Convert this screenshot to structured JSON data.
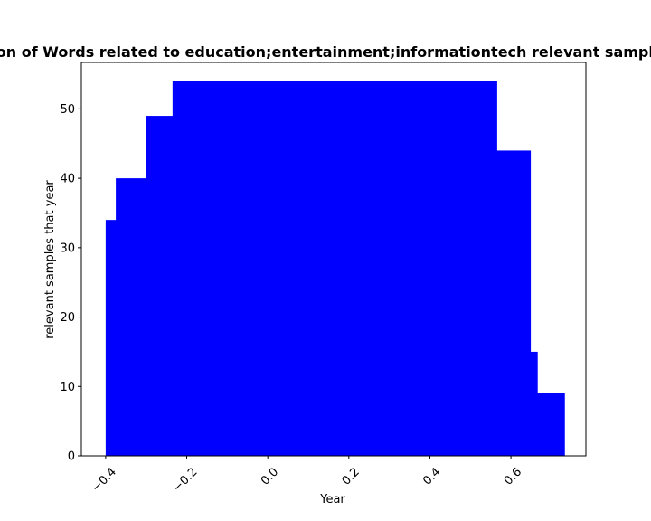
{
  "chart_data": {
    "type": "bar",
    "title": "Distribution of Words related to education;entertainment;informationtech relevant samples that year in Year",
    "xlabel": "Year",
    "ylabel": "relevant samples that year",
    "xlim": [
      -0.46,
      0.785
    ],
    "ylim": [
      0,
      56.7
    ],
    "grid": false,
    "bar_color": "#0000ff",
    "x_ticks": [
      -0.4,
      -0.2,
      0.0,
      0.2,
      0.4,
      0.6
    ],
    "x_tick_labels": [
      "−0.4",
      "−0.2",
      "0.0",
      "0.2",
      "0.4",
      "0.6"
    ],
    "y_ticks": [
      0,
      10,
      20,
      30,
      40,
      50
    ],
    "y_tick_labels": [
      "0",
      "10",
      "20",
      "30",
      "40",
      "50"
    ],
    "bars": [
      {
        "x_start": -0.4,
        "x_end": -0.375,
        "value": 34
      },
      {
        "x_start": -0.375,
        "x_end": -0.3,
        "value": 40
      },
      {
        "x_start": -0.3,
        "x_end": -0.235,
        "value": 49
      },
      {
        "x_start": -0.235,
        "x_end": 0.565,
        "value": 54
      },
      {
        "x_start": 0.565,
        "x_end": 0.648,
        "value": 44
      },
      {
        "x_start": 0.648,
        "x_end": 0.665,
        "value": 15
      },
      {
        "x_start": 0.665,
        "x_end": 0.732,
        "value": 9
      }
    ]
  }
}
